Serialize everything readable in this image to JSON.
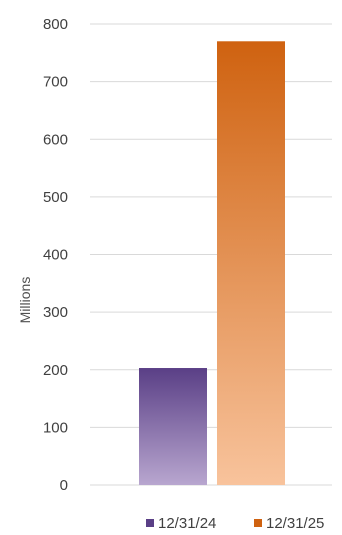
{
  "chart_data": {
    "type": "bar",
    "categories": [
      ""
    ],
    "series": [
      {
        "name": "12/31/24",
        "values": [
          203
        ],
        "color_top": "#5a3f86",
        "color_bottom": "#b8a6cf"
      },
      {
        "name": "12/31/25",
        "values": [
          770
        ],
        "color_top": "#cf6210",
        "color_bottom": "#f8c39c"
      }
    ],
    "title": "",
    "xlabel": "",
    "ylabel": "Millions",
    "ylim": [
      0,
      800
    ],
    "yticks": [
      0,
      100,
      200,
      300,
      400,
      500,
      600,
      700,
      800
    ],
    "grid": true,
    "legend": "bottom-right"
  }
}
